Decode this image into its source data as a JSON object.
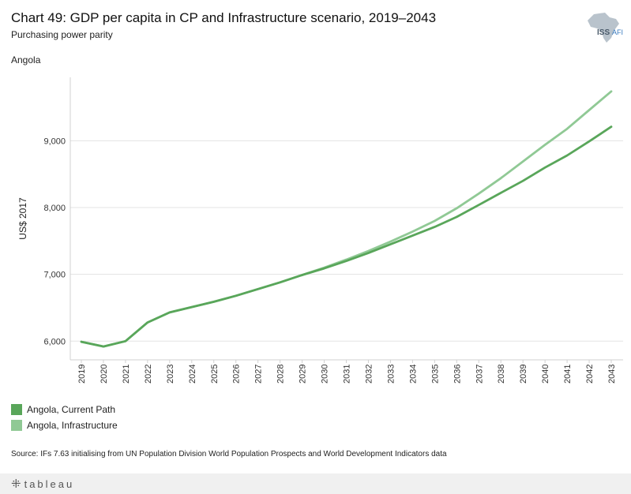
{
  "header": {
    "title": "Chart 49: GDP per capita in CP and Infrastructure scenario, 2019–2043",
    "subtitle": "Purchasing power parity",
    "country": "Angola",
    "logo_text": "ISS",
    "logo_subtext": "AFI"
  },
  "chart_data": {
    "type": "line",
    "title": "Chart 49: GDP per capita in CP and Infrastructure scenario, 2019–2043",
    "subtitle": "Purchasing power parity",
    "xlabel": "",
    "ylabel": "US$ 2017",
    "ylim": [
      5720,
      9950
    ],
    "yticks": [
      6000,
      7000,
      8000,
      9000
    ],
    "ytick_labels": [
      "6,000",
      "7,000",
      "8,000",
      "9,000"
    ],
    "categories": [
      "2019",
      "2020",
      "2021",
      "2022",
      "2023",
      "2024",
      "2025",
      "2026",
      "2027",
      "2028",
      "2029",
      "2030",
      "2031",
      "2032",
      "2033",
      "2034",
      "2035",
      "2036",
      "2037",
      "2038",
      "2039",
      "2040",
      "2041",
      "2042",
      "2043"
    ],
    "series": [
      {
        "name": "Angola,  Current Path",
        "color": "#59a65a",
        "values": [
          5990,
          5920,
          6000,
          6280,
          6430,
          6510,
          6590,
          6680,
          6780,
          6880,
          6990,
          7090,
          7200,
          7320,
          7450,
          7580,
          7710,
          7860,
          8040,
          8220,
          8400,
          8600,
          8780,
          8990,
          9210
        ]
      },
      {
        "name": "Angola,  Infrastructure",
        "color": "#90c995",
        "values": [
          5990,
          5920,
          6000,
          6280,
          6430,
          6510,
          6590,
          6680,
          6780,
          6880,
          6990,
          7100,
          7220,
          7350,
          7490,
          7640,
          7800,
          7990,
          8210,
          8440,
          8690,
          8940,
          9180,
          9460,
          9740
        ]
      }
    ],
    "grid": true,
    "legend_position": "bottom-left"
  },
  "legend": {
    "items": [
      {
        "label": "Angola,  Current Path",
        "color": "#59a65a"
      },
      {
        "label": "Angola,  Infrastructure",
        "color": "#90c995"
      }
    ]
  },
  "source": "Source: IFs 7.63 initialising from UN Population Division World Population Prospects and World Development Indicators data",
  "footer": {
    "brand": "tableau",
    "plus": "⁜"
  }
}
